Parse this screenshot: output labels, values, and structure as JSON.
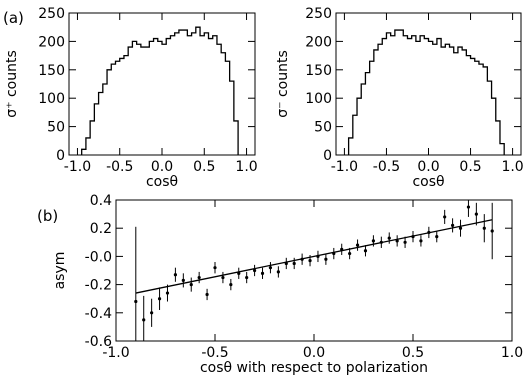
{
  "chart_data": [
    {
      "panel": "(a)",
      "type": "histogram",
      "xlabel": "cosθ",
      "ylabel": "σ⁺ counts",
      "xlim": [
        -1.1,
        1.1
      ],
      "ylim": [
        0,
        250
      ],
      "xticks": [
        "-1.0",
        "-0.5",
        "0.0",
        "0.5",
        "1.0"
      ],
      "yticks": [
        "0",
        "50",
        "100",
        "150",
        "200",
        "250"
      ],
      "bin_edges": [
        -0.95,
        -0.9,
        -0.85,
        -0.8,
        -0.75,
        -0.7,
        -0.65,
        -0.6,
        -0.55,
        -0.5,
        -0.45,
        -0.4,
        -0.35,
        -0.3,
        -0.25,
        -0.2,
        -0.15,
        -0.1,
        -0.05,
        0.0,
        0.05,
        0.1,
        0.15,
        0.2,
        0.25,
        0.3,
        0.35,
        0.4,
        0.45,
        0.5,
        0.55,
        0.6,
        0.65,
        0.7,
        0.75,
        0.8,
        0.85,
        0.9
      ],
      "counts": [
        10,
        30,
        60,
        90,
        110,
        125,
        150,
        160,
        165,
        170,
        175,
        190,
        200,
        195,
        190,
        190,
        200,
        205,
        200,
        195,
        205,
        210,
        215,
        220,
        220,
        210,
        215,
        225,
        210,
        215,
        205,
        210,
        195,
        180,
        165,
        130,
        60
      ]
    },
    {
      "type": "histogram",
      "xlabel": "cosθ",
      "ylabel": "σ⁻ counts",
      "xlim": [
        -1.1,
        1.1
      ],
      "ylim": [
        0,
        250
      ],
      "xticks": [
        "-1.0",
        "-0.5",
        "0.0",
        "0.5",
        "1.0"
      ],
      "yticks": [
        "0",
        "50",
        "100",
        "150",
        "200",
        "250"
      ],
      "bin_edges": [
        -0.95,
        -0.9,
        -0.85,
        -0.8,
        -0.75,
        -0.7,
        -0.65,
        -0.6,
        -0.55,
        -0.5,
        -0.45,
        -0.4,
        -0.35,
        -0.3,
        -0.25,
        -0.2,
        -0.15,
        -0.1,
        -0.05,
        0.0,
        0.05,
        0.1,
        0.15,
        0.2,
        0.25,
        0.3,
        0.35,
        0.4,
        0.45,
        0.5,
        0.55,
        0.6,
        0.65,
        0.7,
        0.75,
        0.8,
        0.85,
        0.9
      ],
      "counts": [
        30,
        70,
        100,
        125,
        145,
        165,
        185,
        195,
        205,
        215,
        210,
        220,
        220,
        210,
        205,
        210,
        200,
        210,
        205,
        200,
        195,
        205,
        190,
        195,
        190,
        180,
        190,
        185,
        175,
        170,
        165,
        160,
        155,
        130,
        100,
        60,
        20
      ]
    },
    {
      "panel": "(b)",
      "type": "scatter",
      "xlabel": "cosθ with respect to polarization",
      "ylabel": "asym",
      "xlim": [
        -1.0,
        1.0
      ],
      "ylim": [
        -0.6,
        0.4
      ],
      "xticks": [
        "-1.0",
        "-0.5",
        "0.0",
        "0.5",
        "1.0"
      ],
      "yticks": [
        "-0.6",
        "-0.4",
        "-0.2",
        "-0.0",
        "0.2",
        "0.4"
      ],
      "points": [
        {
          "x": -0.9,
          "y": -0.32,
          "err": 0.53
        },
        {
          "x": -0.86,
          "y": -0.45,
          "err": 0.17
        },
        {
          "x": -0.82,
          "y": -0.4,
          "err": 0.1
        },
        {
          "x": -0.78,
          "y": -0.3,
          "err": 0.08
        },
        {
          "x": -0.74,
          "y": -0.26,
          "err": 0.06
        },
        {
          "x": -0.7,
          "y": -0.13,
          "err": 0.05
        },
        {
          "x": -0.66,
          "y": -0.17,
          "err": 0.05
        },
        {
          "x": -0.62,
          "y": -0.2,
          "err": 0.05
        },
        {
          "x": -0.58,
          "y": -0.15,
          "err": 0.04
        },
        {
          "x": -0.54,
          "y": -0.27,
          "err": 0.04
        },
        {
          "x": -0.5,
          "y": -0.08,
          "err": 0.04
        },
        {
          "x": -0.46,
          "y": -0.15,
          "err": 0.04
        },
        {
          "x": -0.42,
          "y": -0.2,
          "err": 0.04
        },
        {
          "x": -0.38,
          "y": -0.12,
          "err": 0.04
        },
        {
          "x": -0.34,
          "y": -0.15,
          "err": 0.04
        },
        {
          "x": -0.3,
          "y": -0.1,
          "err": 0.04
        },
        {
          "x": -0.26,
          "y": -0.12,
          "err": 0.04
        },
        {
          "x": -0.22,
          "y": -0.08,
          "err": 0.04
        },
        {
          "x": -0.18,
          "y": -0.11,
          "err": 0.04
        },
        {
          "x": -0.14,
          "y": -0.05,
          "err": 0.04
        },
        {
          "x": -0.1,
          "y": -0.05,
          "err": 0.04
        },
        {
          "x": -0.06,
          "y": -0.02,
          "err": 0.04
        },
        {
          "x": -0.02,
          "y": -0.03,
          "err": 0.04
        },
        {
          "x": 0.02,
          "y": 0.0,
          "err": 0.04
        },
        {
          "x": 0.06,
          "y": -0.02,
          "err": 0.04
        },
        {
          "x": 0.1,
          "y": 0.02,
          "err": 0.04
        },
        {
          "x": 0.14,
          "y": 0.05,
          "err": 0.04
        },
        {
          "x": 0.18,
          "y": 0.02,
          "err": 0.04
        },
        {
          "x": 0.22,
          "y": 0.08,
          "err": 0.04
        },
        {
          "x": 0.26,
          "y": 0.04,
          "err": 0.04
        },
        {
          "x": 0.3,
          "y": 0.11,
          "err": 0.04
        },
        {
          "x": 0.34,
          "y": 0.1,
          "err": 0.04
        },
        {
          "x": 0.38,
          "y": 0.13,
          "err": 0.04
        },
        {
          "x": 0.42,
          "y": 0.11,
          "err": 0.04
        },
        {
          "x": 0.46,
          "y": 0.1,
          "err": 0.04
        },
        {
          "x": 0.5,
          "y": 0.14,
          "err": 0.04
        },
        {
          "x": 0.54,
          "y": 0.11,
          "err": 0.04
        },
        {
          "x": 0.58,
          "y": 0.17,
          "err": 0.04
        },
        {
          "x": 0.62,
          "y": 0.14,
          "err": 0.04
        },
        {
          "x": 0.66,
          "y": 0.28,
          "err": 0.05
        },
        {
          "x": 0.7,
          "y": 0.22,
          "err": 0.05
        },
        {
          "x": 0.74,
          "y": 0.2,
          "err": 0.06
        },
        {
          "x": 0.78,
          "y": 0.35,
          "err": 0.07
        },
        {
          "x": 0.82,
          "y": 0.3,
          "err": 0.08
        },
        {
          "x": 0.86,
          "y": 0.2,
          "err": 0.1
        },
        {
          "x": 0.9,
          "y": 0.18,
          "err": 0.2
        }
      ],
      "fit_line": {
        "x": [
          -0.9,
          0.9
        ],
        "y": [
          -0.26,
          0.26
        ]
      }
    }
  ]
}
